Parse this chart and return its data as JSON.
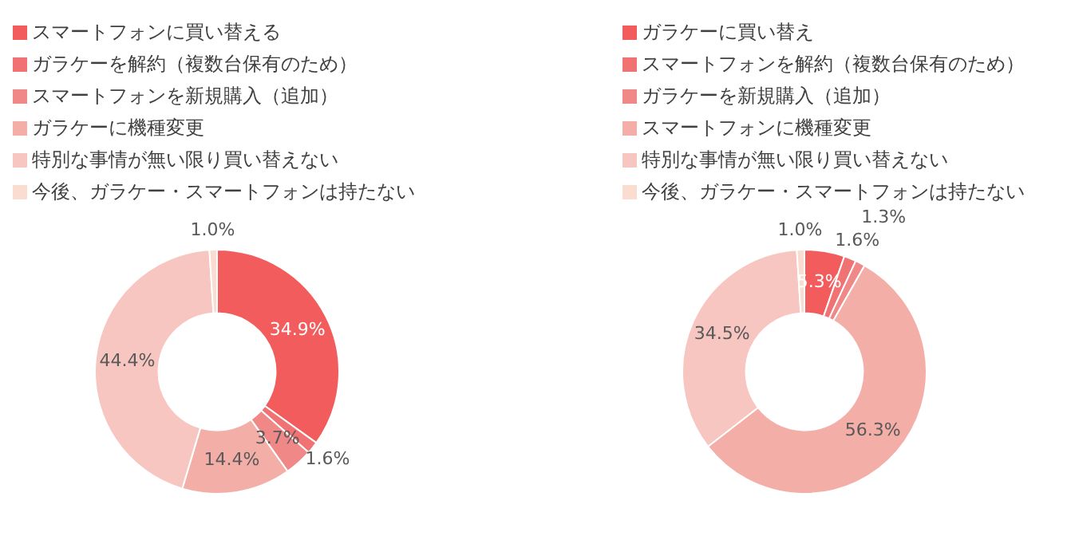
{
  "chart_data": [
    {
      "type": "donut",
      "categories": [
        "スマートフォンに買い替える",
        "ガラケーを解約（複数台保有のため）",
        "スマートフォンを新規購入（追加）",
        "ガラケーに機種変更",
        "特別な事情が無い限り買い替えない",
        "今後、ガラケー・スマートフォンは持たない"
      ],
      "values": [
        34.9,
        1.6,
        3.7,
        14.4,
        44.4,
        1.0
      ],
      "value_labels": [
        "34.9%",
        "1.6%",
        "3.7%",
        "14.4%",
        "44.4%",
        "1.0%"
      ],
      "colors": [
        "#f25c5c",
        "#f07272",
        "#f08888",
        "#f4aea8",
        "#f7c6c1",
        "#fadcd0"
      ],
      "legend": "top"
    },
    {
      "type": "donut",
      "categories": [
        "ガラケーに買い替え",
        "スマートフォンを解約（複数台保有のため）",
        "ガラケーを新規購入（追加）",
        "スマートフォンに機種変更",
        "特別な事情が無い限り買い替えない",
        "今後、ガラケー・スマートフォンは持たない"
      ],
      "values": [
        5.3,
        1.6,
        1.3,
        56.3,
        34.5,
        1.0
      ],
      "value_labels": [
        "5.3%",
        "1.6%",
        "1.3%",
        "56.3%",
        "34.5%",
        "1.0%"
      ],
      "colors": [
        "#f25c5c",
        "#f07272",
        "#f08888",
        "#f4aea8",
        "#f7c6c1",
        "#fadcd0"
      ],
      "legend": "top"
    }
  ]
}
